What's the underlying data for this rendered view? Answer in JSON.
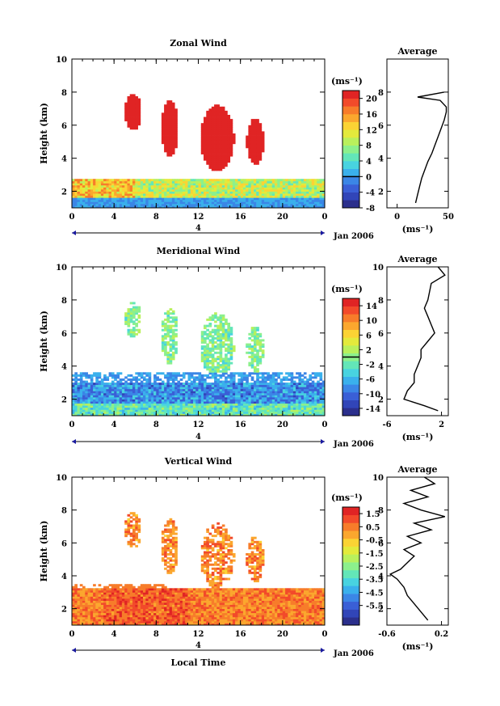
{
  "figure": {
    "date_label": "Jan 2006",
    "day_marker": "4",
    "xlabel_bottom": "Local Time"
  },
  "colormap": [
    "#2b2f8c",
    "#3145b8",
    "#3a5fd6",
    "#3b86e6",
    "#3ab0ec",
    "#48d3e0",
    "#63e6b8",
    "#8cf08c",
    "#b9f05c",
    "#e3ea3c",
    "#fbd334",
    "#fba72e",
    "#f77c2a",
    "#f24a2a",
    "#e02424"
  ],
  "chart_data": [
    {
      "type": "heatmap",
      "title": "Zonal Wind",
      "xlabel": "",
      "ylabel": "Height (km)",
      "x_ticks": [
        "0",
        "4",
        "8",
        "12",
        "16",
        "20",
        "0"
      ],
      "xlim": [
        0,
        24
      ],
      "ylim": [
        1,
        10
      ],
      "y_ticks": [
        "2",
        "4",
        "6",
        "8",
        "10"
      ],
      "colorbar": {
        "unit": "(ms⁻¹)",
        "range": [
          -8,
          22
        ],
        "tick_labels": [
          "20",
          "16",
          "12",
          "8",
          "4",
          "0",
          "-4",
          "-8"
        ],
        "tick_values": [
          20,
          16,
          12,
          8,
          4,
          0,
          -4,
          -8
        ],
        "contour": 0
      },
      "average": {
        "title": "Average",
        "xlabel": "(ms⁻¹)",
        "xlim": [
          -10,
          50
        ],
        "x_ticks": [
          "0",
          "50"
        ],
        "x_tick_values": [
          0,
          50
        ],
        "y_ticks": [
          "2",
          "4",
          "6",
          "8"
        ],
        "profile_height_km": [
          1.3,
          1.8,
          2.3,
          2.8,
          3.3,
          3.8,
          4.3,
          4.8,
          5.3,
          5.8,
          6.3,
          6.8,
          7.1,
          7.3,
          7.5,
          7.7,
          8.0
        ],
        "profile_value": [
          18,
          20,
          22,
          24,
          27,
          30,
          34,
          37,
          40,
          43,
          46,
          48,
          48,
          45,
          42,
          20,
          46
        ]
      }
    },
    {
      "type": "heatmap",
      "title": "Meridional Wind",
      "xlabel": "",
      "ylabel": "Height (km)",
      "x_ticks": [
        "0",
        "4",
        "8",
        "12",
        "16",
        "20",
        "0"
      ],
      "xlim": [
        0,
        24
      ],
      "ylim": [
        1,
        10
      ],
      "y_ticks": [
        "2",
        "4",
        "6",
        "8",
        "10"
      ],
      "colorbar": {
        "unit": "(ms⁻¹)",
        "range": [
          -16,
          16
        ],
        "tick_labels": [
          "14",
          "10",
          "6",
          "2",
          "-2",
          "-6",
          "-10",
          "-14"
        ],
        "tick_values": [
          14,
          10,
          6,
          2,
          -2,
          -6,
          -10,
          -14
        ],
        "contour": 0
      },
      "average": {
        "title": "Average",
        "xlabel": "(ms⁻¹)",
        "xlim": [
          -6,
          3
        ],
        "x_ticks": [
          "-6",
          "2"
        ],
        "x_tick_values": [
          -6,
          2
        ],
        "y_ticks": [
          "2",
          "4",
          "6",
          "8",
          "10"
        ],
        "profile_height_km": [
          1.3,
          1.6,
          2.0,
          2.5,
          3.0,
          3.5,
          4.0,
          4.5,
          5.0,
          5.5,
          6.0,
          6.5,
          7.0,
          7.5,
          8.0,
          9.0,
          9.5,
          10.0
        ],
        "profile_value": [
          1.5,
          -0.5,
          -3.5,
          -3.0,
          -2.0,
          -2.0,
          -1.5,
          -1.0,
          -1.0,
          0.0,
          1.0,
          0.5,
          0.0,
          -0.5,
          0.0,
          0.5,
          2.5,
          1.5
        ]
      }
    },
    {
      "type": "heatmap",
      "title": "Vertical Wind",
      "xlabel": "Local Time",
      "ylabel": "Height (km)",
      "x_ticks": [
        "0",
        "4",
        "8",
        "12",
        "16",
        "20",
        "0"
      ],
      "xlim": [
        0,
        24
      ],
      "ylim": [
        1,
        10
      ],
      "y_ticks": [
        "2",
        "4",
        "6",
        "8",
        "10"
      ],
      "colorbar": {
        "unit": "(ms⁻¹)",
        "range": [
          -7,
          2
        ],
        "tick_labels": [
          "1.5",
          "0.5",
          "-0.5",
          "-1.5",
          "-2.5",
          "-3.5",
          "-4.5",
          "-5.5"
        ],
        "tick_values": [
          1.5,
          0.5,
          -0.5,
          -1.5,
          -2.5,
          -3.5,
          -4.5,
          -5.5
        ],
        "contour": null
      },
      "average": {
        "title": "Average",
        "xlabel": "(ms⁻¹)",
        "xlim": [
          -0.6,
          0.3
        ],
        "x_ticks": [
          "-0.6",
          "0.2"
        ],
        "x_tick_values": [
          -0.6,
          0.2
        ],
        "y_ticks": [
          "2",
          "4",
          "6",
          "8",
          "10"
        ],
        "profile_height_km": [
          1.3,
          1.8,
          2.3,
          2.8,
          3.3,
          3.8,
          4.1,
          4.4,
          4.8,
          5.2,
          5.6,
          6.0,
          6.4,
          6.8,
          7.2,
          7.6,
          8.0,
          8.4,
          8.8,
          9.2,
          9.6,
          10.0
        ],
        "profile_value": [
          0.0,
          -0.1,
          -0.2,
          -0.3,
          -0.35,
          -0.45,
          -0.55,
          -0.4,
          -0.3,
          -0.2,
          -0.35,
          -0.1,
          -0.3,
          0.05,
          -0.2,
          0.25,
          -0.1,
          -0.35,
          0.0,
          -0.25,
          0.1,
          -0.05
        ]
      }
    }
  ]
}
